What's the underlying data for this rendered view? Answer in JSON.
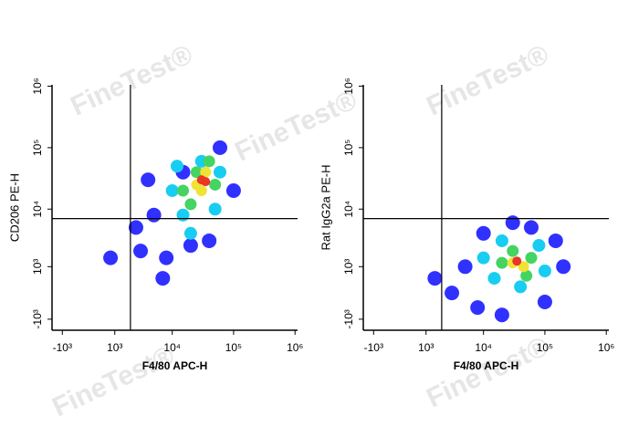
{
  "watermark": "FineTest®",
  "chart_data": [
    {
      "type": "scatter",
      "xlabel": "F4/80 APC-H",
      "ylabel": "CD206 PE-H",
      "xscale": "biexponential",
      "yscale": "biexponential",
      "xlim": [
        -1600,
        1100000
      ],
      "ylim": [
        -1650,
        1050000
      ],
      "xticks": [
        {
          "value": -1000,
          "label": "-10³"
        },
        {
          "value": 1000,
          "label": "10³"
        },
        {
          "value": 10000,
          "label": "10⁴"
        },
        {
          "value": 100000,
          "label": "10⁵"
        },
        {
          "value": 1000000,
          "label": "10⁶"
        }
      ],
      "yticks": [
        {
          "value": -1000,
          "label": "-10³"
        },
        {
          "value": 1000,
          "label": "10³"
        },
        {
          "value": 10000,
          "label": "10⁴"
        },
        {
          "value": 100000,
          "label": "10⁵"
        },
        {
          "value": 1000000,
          "label": "10⁶"
        }
      ],
      "quadrant": {
        "x": 2000,
        "y": 7000
      },
      "series": [
        {
          "color": "#1a1aff",
          "x": [
            800,
            3000,
            8000,
            5000,
            15000,
            60000,
            100000,
            4000,
            2500,
            20000,
            40000,
            7000
          ],
          "values": [
            1500,
            2000,
            1500,
            8000,
            40000,
            100000,
            20000,
            30000,
            5000,
            2500,
            3000,
            500
          ]
        },
        {
          "color": "#00c8f0",
          "x": [
            10000,
            15000,
            30000,
            60000,
            20000,
            12000,
            50000
          ],
          "values": [
            20000,
            8000,
            60000,
            40000,
            4000,
            50000,
            10000
          ]
        },
        {
          "color": "#30d050",
          "x": [
            15000,
            25000,
            40000,
            50000,
            20000
          ],
          "values": [
            20000,
            40000,
            60000,
            25000,
            12000
          ]
        },
        {
          "color": "#f0e020",
          "x": [
            25000,
            35000,
            30000
          ],
          "values": [
            25000,
            40000,
            20000
          ]
        },
        {
          "color": "#e82010",
          "x": [
            30000,
            35000
          ],
          "values": [
            30000,
            28000
          ]
        }
      ]
    },
    {
      "type": "scatter",
      "xlabel": "F4/80 APC-H",
      "ylabel": "Rat IgG2a PE-H",
      "xscale": "biexponential",
      "yscale": "biexponential",
      "xlim": [
        -1600,
        1100000
      ],
      "ylim": [
        -1650,
        1050000
      ],
      "xticks": [
        {
          "value": -1000,
          "label": "-10³"
        },
        {
          "value": 1000,
          "label": "10³"
        },
        {
          "value": 10000,
          "label": "10⁴"
        },
        {
          "value": 100000,
          "label": "10⁵"
        },
        {
          "value": 1000000,
          "label": "10⁶"
        }
      ],
      "yticks": [
        {
          "value": -1000,
          "label": "-10³"
        },
        {
          "value": 1000,
          "label": "10³"
        },
        {
          "value": 10000,
          "label": "10⁴"
        },
        {
          "value": 100000,
          "label": "10⁵"
        },
        {
          "value": 1000000,
          "label": "10⁶"
        }
      ],
      "quadrant": {
        "x": 2000,
        "y": 7000
      },
      "series": [
        {
          "color": "#1a1aff",
          "x": [
            5000,
            10000,
            200000,
            150000,
            3000,
            8000,
            100000,
            30000,
            20000,
            60000,
            1500
          ],
          "values": [
            1000,
            4000,
            1000,
            3000,
            0,
            -500,
            -300,
            6000,
            -800,
            5000,
            500
          ]
        },
        {
          "color": "#00c8f0",
          "x": [
            10000,
            20000,
            80000,
            100000,
            40000,
            15000
          ],
          "values": [
            1500,
            3000,
            2500,
            800,
            200,
            500
          ]
        },
        {
          "color": "#30d050",
          "x": [
            20000,
            30000,
            60000,
            50000
          ],
          "values": [
            1200,
            2000,
            1500,
            600
          ]
        },
        {
          "color": "#f0e020",
          "x": [
            30000,
            45000
          ],
          "values": [
            1200,
            1000
          ]
        },
        {
          "color": "#e82010",
          "x": [
            35000
          ],
          "values": [
            1300
          ]
        }
      ]
    }
  ]
}
